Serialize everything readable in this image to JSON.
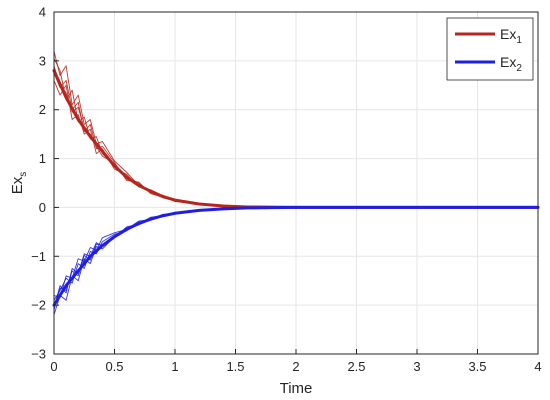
{
  "chart_data": {
    "type": "line",
    "title": "",
    "xlabel": "Time",
    "ylabel": {
      "base": "Ex",
      "subscript": "s"
    },
    "xlim": [
      0,
      4
    ],
    "ylim": [
      -3,
      4
    ],
    "xticks": [
      "0",
      "0.5",
      "1",
      "1.5",
      "2",
      "2.5",
      "3",
      "3.5",
      "4"
    ],
    "yticks": [
      "−3",
      "−2",
      "−1",
      "0",
      "1",
      "2",
      "3",
      "4"
    ],
    "grid": true,
    "legend_position": "top-right",
    "series": [
      {
        "name": {
          "base": "Ex",
          "subscript": "1"
        },
        "color": "#b5261e",
        "x": [
          0,
          0.1,
          0.2,
          0.3,
          0.4,
          0.5,
          0.6,
          0.7,
          0.8,
          0.9,
          1.0,
          1.2,
          1.4,
          1.6,
          1.8,
          2.0,
          2.5,
          3.0,
          3.5,
          4.0
        ],
        "y": [
          2.8,
          2.25,
          1.8,
          1.45,
          1.15,
          0.85,
          0.62,
          0.45,
          0.33,
          0.22,
          0.15,
          0.07,
          0.03,
          0.01,
          0.005,
          0,
          0,
          0,
          0,
          0
        ],
        "noisy_trajectories": [
          {
            "x": [
              0,
              0.05,
              0.1,
              0.15,
              0.2,
              0.25,
              0.3,
              0.35,
              0.4,
              0.5,
              0.6,
              0.7,
              0.8,
              0.9,
              1.0,
              1.2,
              1.4,
              1.6,
              1.8,
              2.0,
              2.5,
              4.0
            ],
            "y": [
              3.2,
              2.7,
              2.9,
              2.1,
              2.3,
              1.7,
              1.8,
              1.3,
              1.35,
              0.95,
              0.72,
              0.45,
              0.3,
              0.2,
              0.15,
              0.07,
              0.04,
              0.02,
              0.01,
              0,
              0,
              0
            ]
          },
          {
            "x": [
              0,
              0.05,
              0.1,
              0.15,
              0.2,
              0.25,
              0.3,
              0.35,
              0.4,
              0.5,
              0.6,
              0.7,
              0.8,
              0.9,
              1.0,
              1.2,
              1.4,
              1.6,
              1.8,
              2.0,
              2.5,
              4.0
            ],
            "y": [
              2.9,
              2.5,
              2.35,
              1.95,
              2.05,
              1.6,
              1.5,
              1.25,
              1.05,
              0.9,
              0.58,
              0.48,
              0.33,
              0.22,
              0.13,
              0.06,
              0.03,
              0.01,
              0.005,
              0,
              0,
              0
            ]
          },
          {
            "x": [
              0,
              0.05,
              0.1,
              0.15,
              0.2,
              0.25,
              0.3,
              0.35,
              0.4,
              0.5,
              0.6,
              0.7,
              0.8,
              0.9,
              1.0,
              1.2,
              1.4,
              1.6,
              1.8,
              2.0,
              2.5,
              4.0
            ],
            "y": [
              2.6,
              2.3,
              2.5,
              1.8,
              1.9,
              1.5,
              1.6,
              1.1,
              1.2,
              0.78,
              0.68,
              0.42,
              0.36,
              0.24,
              0.12,
              0.08,
              0.03,
              0.02,
              0.01,
              0,
              0,
              0
            ]
          },
          {
            "x": [
              0,
              0.05,
              0.1,
              0.15,
              0.2,
              0.25,
              0.3,
              0.35,
              0.4,
              0.5,
              0.6,
              0.7,
              0.8,
              0.9,
              1.0,
              1.2,
              1.4,
              1.6,
              1.8,
              2.0,
              2.5,
              4.0
            ],
            "y": [
              3.05,
              2.8,
              2.2,
              2.4,
              1.75,
              1.85,
              1.4,
              1.45,
              1.1,
              0.85,
              0.62,
              0.5,
              0.31,
              0.25,
              0.16,
              0.06,
              0.04,
              0.02,
              0.005,
              0,
              0,
              0
            ]
          },
          {
            "x": [
              0,
              0.05,
              0.1,
              0.15,
              0.2,
              0.25,
              0.3,
              0.35,
              0.4,
              0.5,
              0.6,
              0.7,
              0.8,
              0.9,
              1.0,
              1.2,
              1.4,
              1.6,
              1.8,
              2.0,
              2.5,
              4.0
            ],
            "y": [
              2.75,
              2.45,
              2.6,
              2.0,
              2.15,
              1.55,
              1.7,
              1.2,
              1.25,
              0.92,
              0.55,
              0.52,
              0.28,
              0.21,
              0.14,
              0.07,
              0.03,
              0.01,
              0.005,
              0,
              0,
              0
            ]
          }
        ]
      },
      {
        "name": {
          "base": "Ex",
          "subscript": "2"
        },
        "color": "#1e1ee6",
        "x": [
          0,
          0.1,
          0.2,
          0.3,
          0.4,
          0.5,
          0.6,
          0.7,
          0.8,
          0.9,
          1.0,
          1.2,
          1.4,
          1.6,
          1.8,
          2.0,
          2.5,
          3.0,
          3.5,
          4.0
        ],
        "y": [
          -2.0,
          -1.6,
          -1.3,
          -1.0,
          -0.78,
          -0.6,
          -0.45,
          -0.33,
          -0.24,
          -0.17,
          -0.12,
          -0.06,
          -0.03,
          -0.01,
          -0.005,
          0,
          0,
          0,
          0,
          0
        ],
        "noisy_trajectories": [
          {
            "x": [
              0,
              0.05,
              0.1,
              0.15,
              0.2,
              0.25,
              0.3,
              0.35,
              0.4,
              0.5,
              0.6,
              0.7,
              0.8,
              0.9,
              1.0,
              1.2,
              1.4,
              1.6,
              1.8,
              2.0,
              2.5,
              4.0
            ],
            "y": [
              -2.2,
              -1.8,
              -1.9,
              -1.4,
              -1.5,
              -1.05,
              -1.15,
              -0.8,
              -0.85,
              -0.6,
              -0.42,
              -0.36,
              -0.22,
              -0.18,
              -0.1,
              -0.06,
              -0.03,
              -0.01,
              -0.005,
              0,
              0,
              0
            ]
          },
          {
            "x": [
              0,
              0.05,
              0.1,
              0.15,
              0.2,
              0.25,
              0.3,
              0.35,
              0.4,
              0.5,
              0.6,
              0.7,
              0.8,
              0.9,
              1.0,
              1.2,
              1.4,
              1.6,
              1.8,
              2.0,
              2.5,
              4.0
            ],
            "y": [
              -1.9,
              -1.7,
              -1.45,
              -1.55,
              -1.15,
              -1.25,
              -0.9,
              -0.95,
              -0.7,
              -0.55,
              -0.48,
              -0.3,
              -0.26,
              -0.15,
              -0.12,
              -0.05,
              -0.03,
              -0.01,
              -0.005,
              0,
              0,
              0
            ]
          },
          {
            "x": [
              0,
              0.05,
              0.1,
              0.15,
              0.2,
              0.25,
              0.3,
              0.35,
              0.4,
              0.5,
              0.6,
              0.7,
              0.8,
              0.9,
              1.0,
              1.2,
              1.4,
              1.6,
              1.8,
              2.0,
              2.5,
              4.0
            ],
            "y": [
              -2.05,
              -1.6,
              -1.75,
              -1.25,
              -1.35,
              -0.95,
              -1.0,
              -0.72,
              -0.8,
              -0.62,
              -0.4,
              -0.34,
              -0.2,
              -0.17,
              -0.11,
              -0.06,
              -0.02,
              -0.01,
              -0.005,
              0,
              0,
              0
            ]
          },
          {
            "x": [
              0,
              0.05,
              0.1,
              0.15,
              0.2,
              0.25,
              0.3,
              0.35,
              0.4,
              0.5,
              0.6,
              0.7,
              0.8,
              0.9,
              1.0,
              1.2,
              1.4,
              1.6,
              1.8,
              2.0,
              2.5,
              4.0
            ],
            "y": [
              -1.8,
              -1.85,
              -1.4,
              -1.45,
              -1.05,
              -1.1,
              -0.82,
              -0.88,
              -0.62,
              -0.52,
              -0.45,
              -0.28,
              -0.25,
              -0.14,
              -0.13,
              -0.05,
              -0.03,
              -0.01,
              -0.005,
              0,
              0,
              0
            ]
          },
          {
            "x": [
              0,
              0.05,
              0.1,
              0.15,
              0.2,
              0.25,
              0.3,
              0.35,
              0.4,
              0.5,
              0.6,
              0.7,
              0.8,
              0.9,
              1.0,
              1.2,
              1.4,
              1.6,
              1.8,
              2.0,
              2.5,
              4.0
            ],
            "y": [
              -2.1,
              -1.65,
              -1.7,
              -1.3,
              -1.4,
              -0.98,
              -1.08,
              -0.75,
              -0.78,
              -0.58,
              -0.43,
              -0.32,
              -0.23,
              -0.16,
              -0.1,
              -0.06,
              -0.02,
              -0.01,
              -0.005,
              0,
              0,
              0
            ]
          }
        ]
      }
    ]
  }
}
